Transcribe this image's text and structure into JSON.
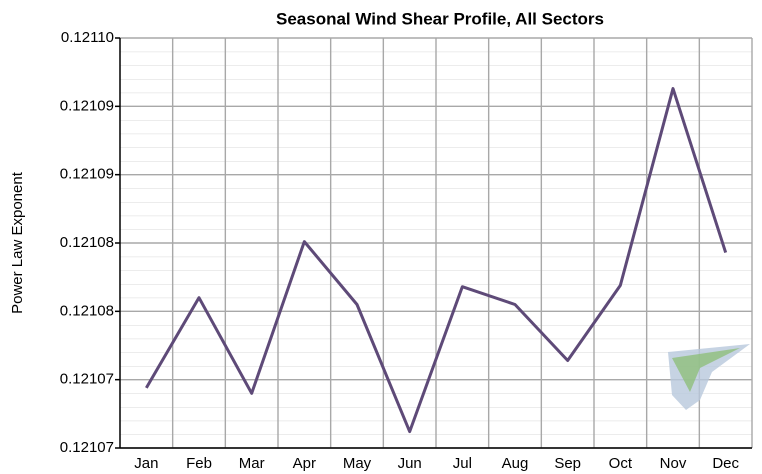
{
  "chart_data": {
    "type": "line",
    "title": "Seasonal Wind Shear Profile, All Sectors",
    "y_label": "Power Law Exponent",
    "categories": [
      "Jan",
      "Feb",
      "Mar",
      "Apr",
      "May",
      "Jun",
      "Jul",
      "Aug",
      "Sep",
      "Oct",
      "Nov",
      "Dec"
    ],
    "series": [
      {
        "name": "Power Law Exponent",
        "color": "#5e4a78",
        "values": [
          0.1210744,
          0.121081,
          0.121074,
          0.1210851,
          0.1210805,
          0.1210712,
          0.1210818,
          0.1210805,
          0.1210764,
          0.1210819,
          0.1210963,
          0.1210843
        ]
      }
    ],
    "ylim": [
      0.12107,
      0.1211
    ],
    "yticks": [
      {
        "value": 0.12107,
        "label": "0.12107"
      },
      {
        "value": 0.121075,
        "label": "0.12107"
      },
      {
        "value": 0.12108,
        "label": "0.12108"
      },
      {
        "value": 0.121085,
        "label": "0.12108"
      },
      {
        "value": 0.12109,
        "label": "0.12109"
      },
      {
        "value": 0.121095,
        "label": "0.12109"
      },
      {
        "value": 0.1211,
        "label": "0.12110"
      }
    ],
    "grid": true
  }
}
